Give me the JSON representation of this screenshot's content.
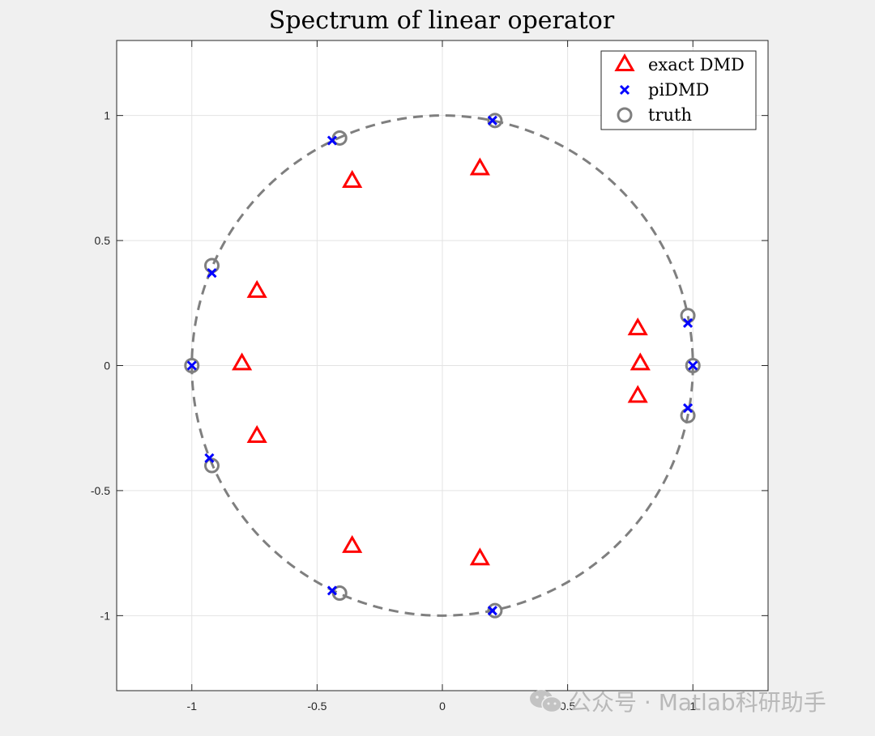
{
  "chart_data": {
    "type": "scatter",
    "title": "Spectrum of linear operator",
    "xlabel": "",
    "ylabel": "",
    "xlim": [
      -1.3,
      1.3
    ],
    "ylim": [
      -1.3,
      1.3
    ],
    "xticks": [
      -1,
      -0.5,
      0,
      0.5,
      1
    ],
    "yticks": [
      -1,
      -0.5,
      0,
      0.5,
      1
    ],
    "xtick_labels": [
      "-1",
      "-0.5",
      "0",
      "0.5",
      "1"
    ],
    "ytick_labels": [
      "-1",
      "-0.5",
      "0",
      "0.5",
      "1"
    ],
    "grid": true,
    "legend_position": "top-right",
    "unit_circle": {
      "radius": 1,
      "style": "dashed",
      "color": "#7f7f7f"
    },
    "series": [
      {
        "name": "exact DMD",
        "marker": "triangle",
        "color": "#ff0000",
        "points": [
          {
            "x": 0.15,
            "y": 0.79
          },
          {
            "x": -0.36,
            "y": 0.74
          },
          {
            "x": -0.74,
            "y": 0.3
          },
          {
            "x": -0.8,
            "y": 0.01
          },
          {
            "x": -0.74,
            "y": -0.28
          },
          {
            "x": -0.36,
            "y": -0.72
          },
          {
            "x": 0.15,
            "y": -0.77
          },
          {
            "x": 0.78,
            "y": 0.15
          },
          {
            "x": 0.79,
            "y": 0.01
          },
          {
            "x": 0.78,
            "y": -0.12
          }
        ]
      },
      {
        "name": "piDMD",
        "marker": "x",
        "color": "#0000ff",
        "points": [
          {
            "x": 0.2,
            "y": 0.98
          },
          {
            "x": -0.44,
            "y": 0.9
          },
          {
            "x": -0.92,
            "y": 0.37
          },
          {
            "x": -1.0,
            "y": 0.0
          },
          {
            "x": -0.93,
            "y": -0.37
          },
          {
            "x": -0.44,
            "y": -0.9
          },
          {
            "x": 0.2,
            "y": -0.98
          },
          {
            "x": 0.98,
            "y": 0.17
          },
          {
            "x": 1.0,
            "y": 0.0
          },
          {
            "x": 0.98,
            "y": -0.17
          }
        ]
      },
      {
        "name": "truth",
        "marker": "circle",
        "color": "#7f7f7f",
        "points": [
          {
            "x": 0.21,
            "y": 0.98
          },
          {
            "x": -0.41,
            "y": 0.91
          },
          {
            "x": -0.92,
            "y": 0.4
          },
          {
            "x": -1.0,
            "y": 0.0
          },
          {
            "x": -0.92,
            "y": -0.4
          },
          {
            "x": -0.41,
            "y": -0.91
          },
          {
            "x": 0.21,
            "y": -0.98
          },
          {
            "x": 0.98,
            "y": 0.2
          },
          {
            "x": 1.0,
            "y": 0.0
          },
          {
            "x": 0.98,
            "y": -0.2
          }
        ]
      }
    ]
  },
  "watermark": {
    "text": "公众号 · Matlab科研助手",
    "icon": "wechat-icon"
  }
}
